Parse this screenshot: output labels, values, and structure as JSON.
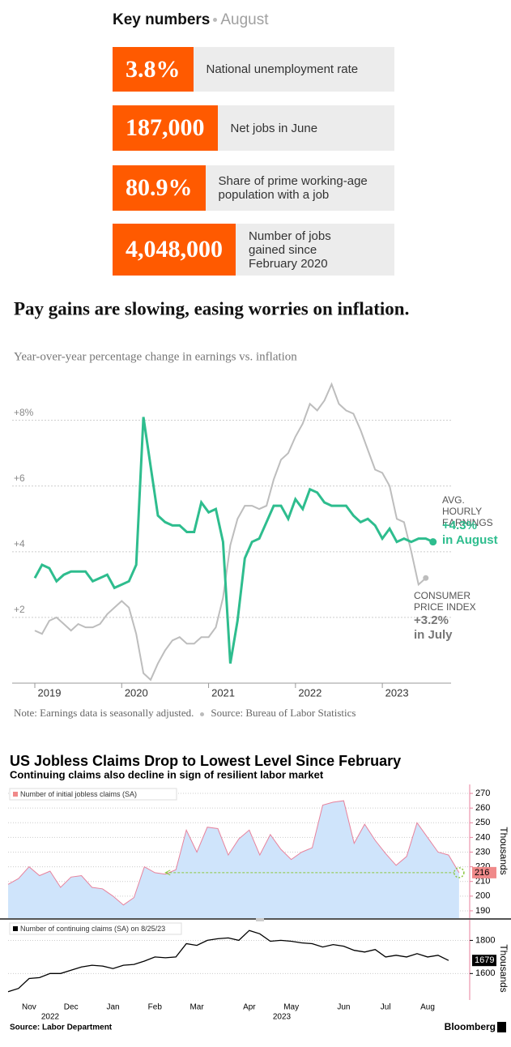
{
  "key_numbers": {
    "title": "Key numbers",
    "period": "August",
    "items": [
      {
        "value": "3.8%",
        "label": "National unemployment rate"
      },
      {
        "value": "187,000",
        "label": "Net jobs in June"
      },
      {
        "value": "80.9%",
        "label": "Share of prime working-age population with a job"
      },
      {
        "value": "4,048,000",
        "label": "Number of jobs gained since February 2020"
      }
    ]
  },
  "chart_data": [
    {
      "type": "line",
      "title": "Pay gains are slowing, easing worries on inflation.",
      "subtitle": "Year-over-year percentage change in earnings vs. inflation",
      "categories": [
        "2019",
        null,
        null,
        null,
        null,
        null,
        null,
        null,
        null,
        null,
        null,
        null,
        "2020",
        null,
        null,
        null,
        null,
        null,
        null,
        null,
        null,
        null,
        null,
        null,
        "2021",
        null,
        null,
        null,
        null,
        null,
        null,
        null,
        null,
        null,
        null,
        null,
        "2022",
        null,
        null,
        null,
        null,
        null,
        null,
        null,
        null,
        null,
        null,
        null,
        "2023",
        null,
        null,
        null,
        null,
        null,
        null,
        null
      ],
      "series": [
        {
          "name": "AVG. HOURLY EARNINGS",
          "color": "#2ebd8e",
          "values": [
            3.2,
            3.6,
            3.5,
            3.1,
            3.3,
            3.4,
            3.4,
            3.4,
            3.1,
            3.2,
            3.3,
            2.9,
            3.0,
            3.1,
            3.6,
            8.1,
            6.6,
            5.1,
            4.9,
            4.8,
            4.8,
            4.6,
            4.6,
            5.5,
            5.2,
            5.3,
            4.3,
            0.6,
            1.9,
            3.8,
            4.3,
            4.4,
            4.9,
            5.4,
            5.4,
            5.0,
            5.6,
            5.3,
            5.9,
            5.8,
            5.5,
            5.4,
            5.4,
            5.4,
            5.1,
            4.9,
            5.0,
            4.8,
            4.4,
            4.7,
            4.3,
            4.4,
            4.3,
            4.4,
            4.4,
            4.3
          ]
        },
        {
          "name": "CONSUMER PRICE INDEX",
          "color": "#bdbdbd",
          "values": [
            1.6,
            1.5,
            1.9,
            2.0,
            1.8,
            1.6,
            1.8,
            1.7,
            1.7,
            1.8,
            2.1,
            2.3,
            2.5,
            2.3,
            1.5,
            0.3,
            0.1,
            0.6,
            1.0,
            1.3,
            1.4,
            1.2,
            1.2,
            1.4,
            1.4,
            1.7,
            2.6,
            4.2,
            5.0,
            5.4,
            5.4,
            5.3,
            5.4,
            6.2,
            6.8,
            7.0,
            7.5,
            7.9,
            8.5,
            8.3,
            8.6,
            9.1,
            8.5,
            8.3,
            8.2,
            7.7,
            7.1,
            6.5,
            6.4,
            6.0,
            5.0,
            4.9,
            4.0,
            3.0,
            3.2,
            null
          ]
        }
      ],
      "ylim": [
        0,
        9.2
      ],
      "yticks": [
        {
          "value": 2,
          "label": "+2"
        },
        {
          "value": 4,
          "label": "+4"
        },
        {
          "value": 6,
          "label": "+6"
        },
        {
          "value": 8,
          "label": "+8%"
        }
      ],
      "grid": true,
      "annotations": [
        "+4.3%",
        "in August",
        "+3.2%",
        "in July"
      ],
      "note": "Note: Earnings data is seasonally adjusted.",
      "source": "Source: Bureau of Labor Statistics"
    },
    {
      "type": "area",
      "title": "US Jobless Claims Drop to Lowest Level Since February",
      "subtitle": "Continuing claims also decline in sign of resilient labor market",
      "series": [
        {
          "name": "Number of initial jobless claims (SA)",
          "color": "#e8829c",
          "fill": "#cfe4fb",
          "values": [
            208,
            212,
            220,
            214,
            217,
            206,
            213,
            214,
            206,
            205,
            200,
            194,
            199,
            220,
            216,
            215,
            218,
            245,
            230,
            247,
            246,
            228,
            239,
            245,
            228,
            242,
            232,
            225,
            230,
            233,
            262,
            264,
            265,
            236,
            249,
            238,
            229,
            221,
            227,
            250,
            240,
            230,
            228,
            216
          ]
        }
      ],
      "ylim": [
        185,
        275
      ],
      "yticks": [
        190,
        200,
        210,
        220,
        230,
        240,
        250,
        260,
        270
      ],
      "ylabel": "Thousands",
      "grid": true,
      "source": "Source: Labor Department",
      "credit": "Bloomberg"
    },
    {
      "type": "line",
      "categories": [
        null,
        null,
        "Nov",
        null,
        null,
        null,
        "Dec",
        null,
        null,
        null,
        "Jan",
        null,
        null,
        null,
        "Feb",
        null,
        null,
        null,
        "Mar",
        null,
        null,
        null,
        null,
        "Apr",
        null,
        null,
        null,
        "May",
        null,
        null,
        null,
        null,
        "Jun",
        null,
        null,
        null,
        "Jul",
        null,
        null,
        null,
        "Aug",
        null,
        null,
        null
      ],
      "year_labels": [
        "2022",
        "2023"
      ],
      "series": [
        {
          "name": "Number of continuing claims (SA) on 8/25/23",
          "color": "#000000",
          "values": [
            1490,
            1510,
            1570,
            1575,
            1600,
            1600,
            1620,
            1640,
            1650,
            1645,
            1630,
            1650,
            1655,
            1675,
            1700,
            1695,
            1700,
            1780,
            1770,
            1800,
            1810,
            1815,
            1800,
            1860,
            1840,
            1795,
            1800,
            1795,
            1785,
            1780,
            1760,
            1775,
            1765,
            1740,
            1730,
            1745,
            1700,
            1710,
            1700,
            1720,
            1700,
            1710,
            1679,
            null
          ]
        }
      ],
      "ylim": [
        1450,
        1900
      ],
      "yticks": [
        1600,
        1800
      ],
      "ylabel": "Thousands",
      "grid": true
    }
  ]
}
